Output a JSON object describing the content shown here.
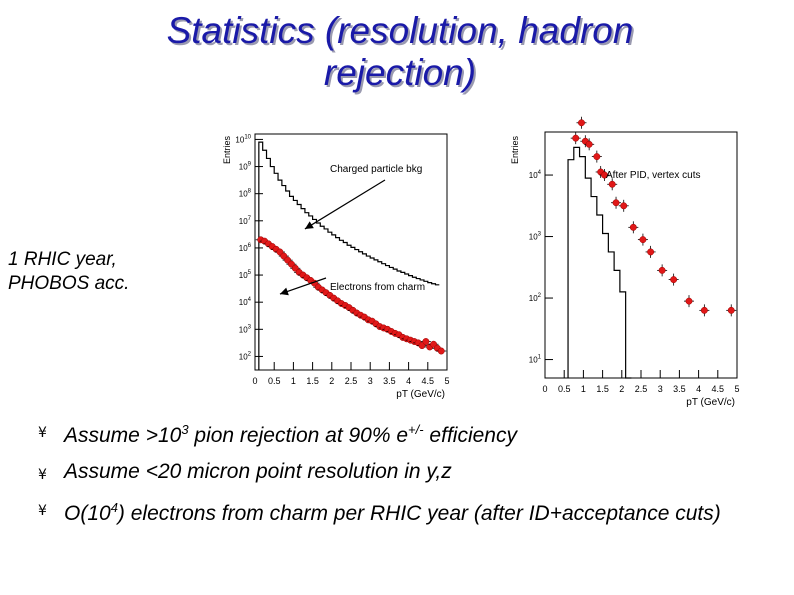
{
  "slide": {
    "title_line1": "Statistics (resolution, hadron",
    "title_line2": "rejection)",
    "side_line1": "1 RHIC year,",
    "side_line2": "PHOBOS acc."
  },
  "bullets": [
    {
      "mark": "¥",
      "pre": "Assume >10",
      "sup": "3",
      "mid": " pion rejection at 90% e",
      "sup2": "+/-",
      "post": " efficiency"
    },
    {
      "mark": "¥",
      "pre": "Assume <20 micron point resolution in y,z",
      "sup": "",
      "mid": "",
      "sup2": "",
      "post": ""
    },
    {
      "mark": "¥",
      "pre": "O(10",
      "sup": "4",
      "mid": ") electrons from charm per RHIC year (after ID+acceptance cuts)",
      "sup2": "",
      "post": ""
    }
  ],
  "colors": {
    "title": "#1a1aa8",
    "marker": "#e01818"
  },
  "chart_data": [
    {
      "type": "scatter",
      "ylabel": "Entries",
      "xlabel": "pT (GeV/c)",
      "log_y": true,
      "xlim": [
        0,
        5
      ],
      "ylim_exp": [
        1.5,
        10.2
      ],
      "x_ticks": [
        "0",
        "0.5",
        "1",
        "1.5",
        "2",
        "2.5",
        "3",
        "3.5",
        "4",
        "4.5",
        "5"
      ],
      "y_ticks": [
        {
          "exp": 10,
          "label": "10"
        },
        {
          "exp": 9,
          "label": "10"
        },
        {
          "exp": 8,
          "label": "10"
        },
        {
          "exp": 7,
          "label": "10"
        },
        {
          "exp": 6,
          "label": "10"
        },
        {
          "exp": 5,
          "label": "10"
        },
        {
          "exp": 4,
          "label": "10"
        },
        {
          "exp": 3,
          "label": "10"
        },
        {
          "exp": 2,
          "label": "10"
        }
      ],
      "annotations": [
        {
          "text": "Charged particle bkg",
          "arrow_to": [
            1.3,
            6.7
          ]
        },
        {
          "text": "Electrons from charm",
          "arrow_to": [
            0.65,
            4.3
          ]
        }
      ],
      "step_series": {
        "name": "Charged particle bkg",
        "x_edges": [
          0.1,
          0.2,
          0.3,
          0.4,
          0.5,
          0.6,
          0.7,
          0.8,
          0.9,
          1.0,
          1.1,
          1.2,
          1.3,
          1.4,
          1.5,
          1.6,
          1.7,
          1.8,
          1.9,
          2.0,
          2.1,
          2.2,
          2.3,
          2.4,
          2.5,
          2.6,
          2.7,
          2.8,
          2.9,
          3.0,
          3.1,
          3.2,
          3.3,
          3.4,
          3.5,
          3.6,
          3.7,
          3.8,
          3.9,
          4.0,
          4.1,
          4.2,
          4.3,
          4.4,
          4.5,
          4.6,
          4.7,
          4.8
        ],
        "log10_values": [
          9.9,
          9.6,
          9.3,
          9.0,
          8.75,
          8.5,
          8.3,
          8.1,
          7.9,
          7.75,
          7.6,
          7.45,
          7.3,
          7.18,
          7.05,
          6.92,
          6.8,
          6.7,
          6.58,
          6.48,
          6.38,
          6.28,
          6.2,
          6.1,
          6.02,
          5.94,
          5.86,
          5.78,
          5.7,
          5.63,
          5.56,
          5.49,
          5.42,
          5.35,
          5.28,
          5.22,
          5.15,
          5.1,
          5.04,
          4.98,
          4.92,
          4.87,
          4.82,
          4.77,
          4.72,
          4.68,
          4.64
        ]
      },
      "marker_series": {
        "name": "Electrons from charm",
        "x": [
          0.15,
          0.25,
          0.35,
          0.45,
          0.55,
          0.65,
          0.75,
          0.85,
          0.95,
          1.05,
          1.15,
          1.25,
          1.35,
          1.45,
          1.55,
          1.65,
          1.75,
          1.85,
          1.95,
          2.05,
          2.15,
          2.25,
          2.35,
          2.45,
          2.55,
          2.65,
          2.75,
          2.85,
          2.95,
          3.05,
          3.15,
          3.25,
          3.35,
          3.45,
          3.55,
          3.65,
          3.75,
          3.85,
          3.95,
          4.05,
          4.15,
          4.25,
          4.35,
          4.45,
          4.55,
          4.65,
          4.75,
          4.85
        ],
        "log10_values": [
          6.3,
          6.25,
          6.15,
          6.05,
          5.95,
          5.85,
          5.7,
          5.55,
          5.4,
          5.25,
          5.1,
          5.0,
          4.9,
          4.8,
          4.7,
          4.55,
          4.45,
          4.35,
          4.25,
          4.15,
          4.05,
          3.95,
          3.88,
          3.8,
          3.7,
          3.6,
          3.52,
          3.45,
          3.35,
          3.3,
          3.2,
          3.1,
          3.05,
          3.0,
          2.92,
          2.85,
          2.8,
          2.7,
          2.65,
          2.6,
          2.55,
          2.5,
          2.4,
          2.55,
          2.35,
          2.45,
          2.3,
          2.2
        ]
      }
    },
    {
      "type": "scatter",
      "ylabel": "Entries",
      "xlabel": "pT (GeV/c)",
      "log_y": true,
      "xlim": [
        0,
        5
      ],
      "ylim_exp": [
        0.7,
        4.7
      ],
      "x_ticks": [
        "0",
        "0.5",
        "1",
        "1.5",
        "2",
        "2.5",
        "3",
        "3.5",
        "4",
        "4.5",
        "5"
      ],
      "y_ticks": [
        {
          "exp": 4,
          "label": "10"
        },
        {
          "exp": 3,
          "label": "10"
        },
        {
          "exp": 2,
          "label": "10"
        },
        {
          "exp": 1,
          "label": "10"
        }
      ],
      "annotations": [
        {
          "text": "After PID, vertex cuts",
          "arrow_to": null
        }
      ],
      "step_series": {
        "name": "",
        "x_edges": [
          0.6,
          0.75,
          0.9,
          1.05,
          1.2,
          1.35,
          1.5,
          1.65,
          1.8,
          1.95,
          2.1,
          2.25
        ],
        "log10_values": [
          4.25,
          4.45,
          4.3,
          3.95,
          3.65,
          3.35,
          3.05,
          2.75,
          2.45,
          2.1,
          0.7
        ]
      },
      "marker_series": {
        "name": "",
        "x": [
          0.8,
          0.95,
          1.05,
          1.15,
          1.35,
          1.45,
          1.55,
          1.75,
          1.85,
          2.05,
          2.3,
          2.55,
          2.75,
          3.05,
          3.35,
          3.75,
          4.15,
          4.85
        ],
        "log10_values": [
          4.6,
          4.85,
          4.55,
          4.5,
          4.3,
          4.05,
          4.0,
          3.85,
          3.55,
          3.5,
          3.15,
          2.95,
          2.75,
          2.45,
          2.3,
          1.95,
          1.8,
          1.8
        ]
      }
    }
  ]
}
